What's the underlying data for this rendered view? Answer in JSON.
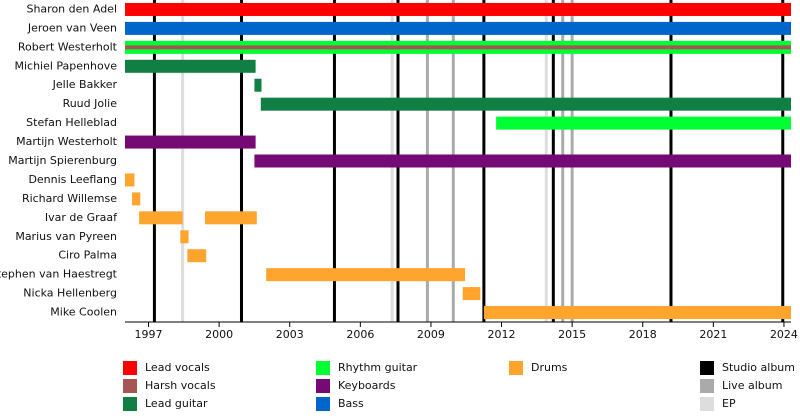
{
  "chart_data": {
    "type": "timeline",
    "xlim": [
      1996,
      2024.3
    ],
    "xticks": [
      1997,
      2000,
      2003,
      2006,
      2009,
      2012,
      2015,
      2018,
      2021,
      2024
    ],
    "roles": [
      {
        "name": "Lead vocals",
        "color": "#ff0000"
      },
      {
        "name": "Harsh vocals",
        "color": "#a65555"
      },
      {
        "name": "Lead guitar",
        "color": "#117f44"
      },
      {
        "name": "Rhythm guitar",
        "color": "#00ff33"
      },
      {
        "name": "Keyboards",
        "color": "#760a74"
      },
      {
        "name": "Bass",
        "color": "#0066cc"
      },
      {
        "name": "Drums",
        "color": "#ffa52e"
      }
    ],
    "events": [
      {
        "name": "Studio album",
        "color": "#000000",
        "dates": [
          1997.25,
          2000.95,
          2004.9,
          2007.6,
          2011.25,
          2014.2,
          2019.2,
          2023.95
        ]
      },
      {
        "name": "Live album",
        "color": "#aaaaaa",
        "dates": [
          2008.85,
          2009.95,
          2014.6,
          2015.0
        ]
      },
      {
        "name": "EP",
        "color": "#dddddd",
        "dates": [
          1998.45,
          2007.35,
          2013.9
        ]
      }
    ],
    "members": [
      {
        "name": "Sharon den Adel",
        "bars": [
          {
            "role": 0,
            "start": 1996,
            "end": 2024.3
          }
        ]
      },
      {
        "name": "Jeroen van Veen",
        "bars": [
          {
            "role": 5,
            "start": 1996,
            "end": 2024.3
          }
        ]
      },
      {
        "name": "Robert Westerholt",
        "bars": [
          {
            "role": 3,
            "start": 1996,
            "end": 2024.3
          },
          {
            "role": 1,
            "start": 1996,
            "end": 2024.3
          }
        ]
      },
      {
        "name": "Michiel Papenhove",
        "bars": [
          {
            "role": 2,
            "start": 1996,
            "end": 2001.55
          }
        ]
      },
      {
        "name": "Jelle Bakker",
        "bars": [
          {
            "role": 2,
            "start": 2001.5,
            "end": 2001.8
          }
        ]
      },
      {
        "name": "Ruud Jolie",
        "bars": [
          {
            "role": 2,
            "start": 2001.77,
            "end": 2024.3
          }
        ]
      },
      {
        "name": "Stefan Helleblad",
        "bars": [
          {
            "role": 3,
            "start": 2011.77,
            "end": 2024.3
          }
        ]
      },
      {
        "name": "Martijn Westerholt",
        "bars": [
          {
            "role": 4,
            "start": 1996,
            "end": 2001.55
          }
        ]
      },
      {
        "name": "Martijn Spierenburg",
        "bars": [
          {
            "role": 4,
            "start": 2001.5,
            "end": 2024.3
          }
        ]
      },
      {
        "name": "Dennis Leeflang",
        "bars": [
          {
            "role": 6,
            "start": 1996,
            "end": 1996.4
          }
        ]
      },
      {
        "name": "Richard Willemse",
        "bars": [
          {
            "role": 6,
            "start": 1996.3,
            "end": 1996.65
          }
        ]
      },
      {
        "name": "Ivar de Graaf",
        "bars": [
          {
            "role": 6,
            "start": 1996.6,
            "end": 1998.45
          },
          {
            "role": 6,
            "start": 1999.4,
            "end": 2001.6
          }
        ]
      },
      {
        "name": "Marius van Pyreen",
        "bars": [
          {
            "role": 6,
            "start": 1998.35,
            "end": 1998.7
          }
        ]
      },
      {
        "name": "Ciro Palma",
        "bars": [
          {
            "role": 6,
            "start": 1998.65,
            "end": 1999.45
          }
        ]
      },
      {
        "name": "Stephen van Haestregt",
        "bars": [
          {
            "role": 6,
            "start": 2002.0,
            "end": 2010.45
          }
        ]
      },
      {
        "name": "Nicka Hellenberg",
        "bars": [
          {
            "role": 6,
            "start": 2010.35,
            "end": 2011.1
          }
        ]
      },
      {
        "name": "Mike Coolen",
        "bars": [
          {
            "role": 6,
            "start": 2011.25,
            "end": 2024.3
          }
        ]
      }
    ]
  }
}
